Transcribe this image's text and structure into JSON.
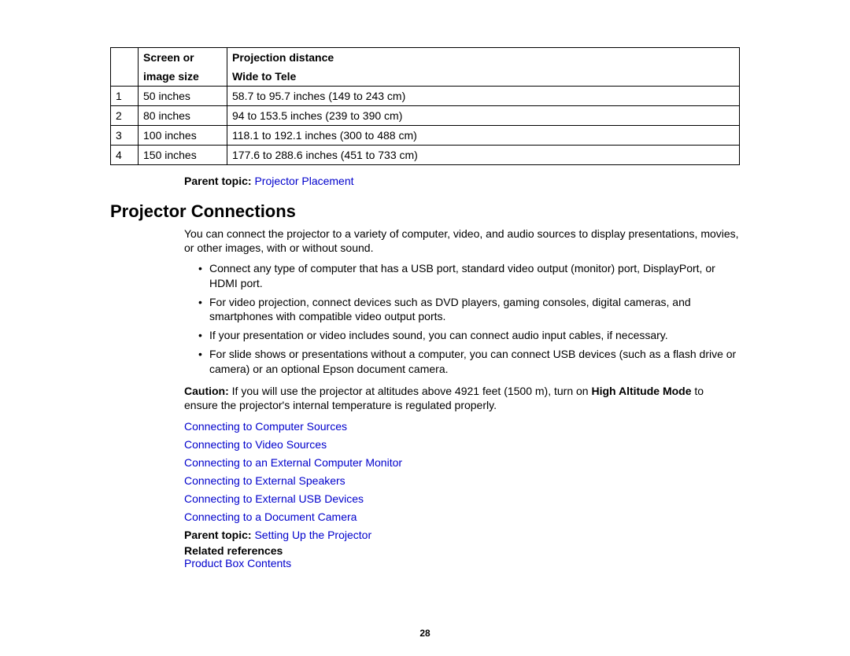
{
  "table": {
    "header": {
      "col2_line1": "Screen or",
      "col2_line2": "image size",
      "col3_line1": "Projection distance",
      "col3_line2": "Wide to Tele"
    },
    "rows": [
      {
        "n": "1",
        "size": "50 inches",
        "dist": "58.7 to 95.7 inches (149 to 243 cm)"
      },
      {
        "n": "2",
        "size": "80 inches",
        "dist": "94 to 153.5 inches (239 to 390 cm)"
      },
      {
        "n": "3",
        "size": "100 inches",
        "dist": "118.1 to 192.1 inches (300 to 488 cm)"
      },
      {
        "n": "4",
        "size": "150 inches",
        "dist": "177.6 to 288.6 inches (451 to 733 cm)"
      }
    ]
  },
  "parent1": {
    "label": "Parent topic: ",
    "link": "Projector Placement"
  },
  "heading": "Projector Connections",
  "intro": "You can connect the projector to a variety of computer, video, and audio sources to display presentations, movies, or other images, with or without sound.",
  "bullets": [
    "Connect any type of computer that has a USB port, standard video output (monitor) port, DisplayPort, or HDMI port.",
    "For video projection, connect devices such as DVD players, gaming consoles, digital cameras, and smartphones with compatible video output ports.",
    "If your presentation or video includes sound, you can connect audio input cables, if necessary.",
    "For slide shows or presentations without a computer, you can connect USB devices (such as a flash drive or camera) or an optional Epson document camera."
  ],
  "caution": {
    "label": "Caution:",
    "pre": " If you will use the projector at altitudes above 4921 feet (1500 m), turn on ",
    "bold": "High Altitude Mode",
    "post": " to ensure the projector's internal temperature is regulated properly."
  },
  "links": [
    "Connecting to Computer Sources",
    "Connecting to Video Sources",
    "Connecting to an External Computer Monitor",
    "Connecting to External Speakers",
    "Connecting to External USB Devices",
    "Connecting to a Document Camera"
  ],
  "parent2": {
    "label": "Parent topic: ",
    "link": "Setting Up the Projector"
  },
  "related": {
    "label": "Related references",
    "link": "Product Box Contents"
  },
  "page_number": "28"
}
